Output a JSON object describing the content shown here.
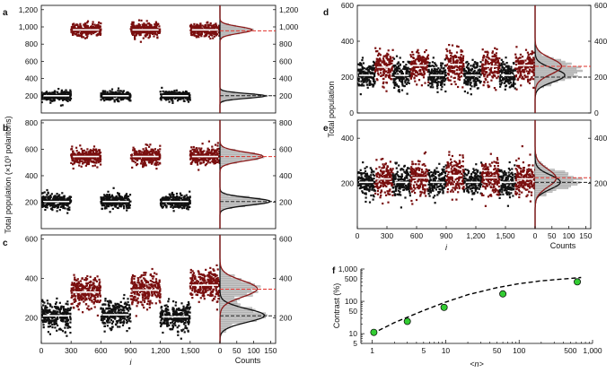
{
  "figure": {
    "panel_letters": [
      "a",
      "b",
      "c",
      "d",
      "e",
      "f"
    ]
  },
  "colors": {
    "series_low": "#111111",
    "series_high": "#7a0f0f",
    "mean_line": "#ffffff",
    "fit_low": "#111111",
    "fit_high": "#8b1a1a",
    "dashed_high": "#e0302a",
    "dashed_low": "#222222",
    "histogram_fill": "#c8c8c8",
    "fit_points": "#33cc33"
  },
  "chart_data": [
    {
      "panel": "a",
      "type": "scatter",
      "xlabel": "",
      "ylabel": "",
      "x_ticks": [],
      "ylim": [
        0,
        1250
      ],
      "y_ticks": [
        200,
        400,
        600,
        800,
        1000,
        1200
      ],
      "y_tick_labels": [
        "200",
        "400",
        "600",
        "800",
        "1,000",
        "1,200"
      ],
      "segments": [
        {
          "x_range": [
            0,
            300
          ],
          "series": "low",
          "mean": 200,
          "spread": 60
        },
        {
          "x_range": [
            300,
            600
          ],
          "series": "high",
          "mean": 965,
          "spread": 80
        },
        {
          "x_range": [
            600,
            900
          ],
          "series": "low",
          "mean": 200,
          "spread": 60
        },
        {
          "x_range": [
            900,
            1200
          ],
          "series": "high",
          "mean": 965,
          "spread": 80
        },
        {
          "x_range": [
            1200,
            1500
          ],
          "series": "low",
          "mean": 200,
          "spread": 60
        },
        {
          "x_range": [
            1500,
            1800
          ],
          "series": "high",
          "mean": 965,
          "spread": 80
        }
      ],
      "histogram": {
        "x_ticks": [],
        "dashed_high": 955,
        "dashed_low": 200
      }
    },
    {
      "panel": "b",
      "type": "scatter",
      "xlabel": "",
      "ylabel": "Total population (×10³ polaritons)",
      "x_ticks": [],
      "ylim": [
        0,
        820
      ],
      "y_ticks": [
        200,
        400,
        600,
        800
      ],
      "y_tick_labels": [
        "200",
        "400",
        "600",
        "800"
      ],
      "segments": [
        {
          "x_range": [
            0,
            300
          ],
          "series": "low",
          "mean": 205,
          "spread": 60
        },
        {
          "x_range": [
            300,
            600
          ],
          "series": "high",
          "mean": 545,
          "spread": 70
        },
        {
          "x_range": [
            600,
            900
          ],
          "series": "low",
          "mean": 205,
          "spread": 60
        },
        {
          "x_range": [
            900,
            1200
          ],
          "series": "high",
          "mean": 545,
          "spread": 70
        },
        {
          "x_range": [
            1200,
            1500
          ],
          "series": "low",
          "mean": 205,
          "spread": 60
        },
        {
          "x_range": [
            1500,
            1800
          ],
          "series": "high",
          "mean": 545,
          "spread": 70
        }
      ],
      "histogram": {
        "x_ticks": [],
        "dashed_high": 545,
        "dashed_low": 205
      }
    },
    {
      "panel": "c",
      "type": "scatter",
      "xlabel": "i",
      "ylabel": "",
      "xlim": [
        0,
        1800
      ],
      "x_ticks": [
        0,
        300,
        600,
        900,
        1200,
        1500
      ],
      "x_tick_labels": [
        "0",
        "300",
        "600",
        "900",
        "1,200",
        "1,500"
      ],
      "ylim": [
        70,
        620
      ],
      "y_ticks": [
        200,
        400,
        600
      ],
      "y_tick_labels": [
        "200",
        "400",
        "600"
      ],
      "segments": [
        {
          "x_range": [
            0,
            300
          ],
          "series": "low",
          "mean": 210,
          "spread": 75
        },
        {
          "x_range": [
            300,
            600
          ],
          "series": "high",
          "mean": 330,
          "spread": 85
        },
        {
          "x_range": [
            600,
            900
          ],
          "series": "low",
          "mean": 215,
          "spread": 75
        },
        {
          "x_range": [
            900,
            1200
          ],
          "series": "high",
          "mean": 340,
          "spread": 85
        },
        {
          "x_range": [
            1200,
            1500
          ],
          "series": "low",
          "mean": 205,
          "spread": 75
        },
        {
          "x_range": [
            1500,
            1800
          ],
          "series": "high",
          "mean": 365,
          "spread": 85
        }
      ],
      "histogram": {
        "xlabel": "Counts",
        "x_ticks": [
          0,
          50,
          100,
          150
        ],
        "x_tick_labels": [
          "0",
          "50",
          "100",
          "150"
        ],
        "dashed_high": 345,
        "dashed_low": 210
      }
    },
    {
      "panel": "d",
      "type": "scatter",
      "xlabel": "",
      "ylabel": "",
      "x_ticks": [],
      "ylim": [
        0,
        600
      ],
      "y_ticks": [
        0,
        200,
        400,
        600
      ],
      "y_tick_labels": [
        "0",
        "200",
        "400",
        "600"
      ],
      "segments": [
        {
          "x_range": [
            0,
            180
          ],
          "series": "low",
          "mean": 210,
          "spread": 80
        },
        {
          "x_range": [
            180,
            360
          ],
          "series": "high",
          "mean": 255,
          "spread": 95
        },
        {
          "x_range": [
            360,
            540
          ],
          "series": "low",
          "mean": 210,
          "spread": 80
        },
        {
          "x_range": [
            540,
            720
          ],
          "series": "high",
          "mean": 265,
          "spread": 95
        },
        {
          "x_range": [
            720,
            900
          ],
          "series": "low",
          "mean": 210,
          "spread": 80
        },
        {
          "x_range": [
            900,
            1080
          ],
          "series": "high",
          "mean": 270,
          "spread": 95
        },
        {
          "x_range": [
            1080,
            1260
          ],
          "series": "low",
          "mean": 210,
          "spread": 80
        },
        {
          "x_range": [
            1260,
            1440
          ],
          "series": "high",
          "mean": 260,
          "spread": 95
        },
        {
          "x_range": [
            1440,
            1600
          ],
          "series": "low",
          "mean": 210,
          "spread": 80
        },
        {
          "x_range": [
            1600,
            1800
          ],
          "series": "high",
          "mean": 265,
          "spread": 95
        }
      ],
      "histogram": {
        "x_ticks": [],
        "dashed_high": 260,
        "dashed_low": 200
      }
    },
    {
      "panel": "e",
      "type": "scatter",
      "xlabel": "i",
      "ylabel": "Total population",
      "xlim": [
        0,
        1800
      ],
      "x_ticks": [
        0,
        300,
        600,
        900,
        1200,
        1500
      ],
      "x_tick_labels": [
        "0",
        "300",
        "600",
        "900",
        "1,200",
        "1,500"
      ],
      "ylim": [
        0,
        480
      ],
      "y_ticks": [
        200,
        400
      ],
      "y_tick_labels": [
        "200",
        "400"
      ],
      "segments": [
        {
          "x_range": [
            0,
            180
          ],
          "series": "low",
          "mean": 205,
          "spread": 70
        },
        {
          "x_range": [
            180,
            360
          ],
          "series": "high",
          "mean": 220,
          "spread": 85
        },
        {
          "x_range": [
            360,
            540
          ],
          "series": "low",
          "mean": 205,
          "spread": 70
        },
        {
          "x_range": [
            540,
            720
          ],
          "series": "high",
          "mean": 225,
          "spread": 85
        },
        {
          "x_range": [
            720,
            900
          ],
          "series": "low",
          "mean": 205,
          "spread": 70
        },
        {
          "x_range": [
            900,
            1080
          ],
          "series": "high",
          "mean": 235,
          "spread": 85
        },
        {
          "x_range": [
            1080,
            1260
          ],
          "series": "low",
          "mean": 205,
          "spread": 70
        },
        {
          "x_range": [
            1260,
            1440
          ],
          "series": "high",
          "mean": 225,
          "spread": 85
        },
        {
          "x_range": [
            1440,
            1600
          ],
          "series": "low",
          "mean": 205,
          "spread": 70
        },
        {
          "x_range": [
            1600,
            1800
          ],
          "series": "high",
          "mean": 220,
          "spread": 85
        }
      ],
      "histogram": {
        "xlabel": "Counts",
        "x_ticks": [
          0,
          50,
          100,
          150
        ],
        "x_tick_labels": [
          "0",
          "50",
          "100",
          "150"
        ],
        "dashed_high": 225,
        "dashed_low": 205
      }
    },
    {
      "panel": "f",
      "type": "scatter",
      "xlabel": "<n>",
      "ylabel": "Contrast (%)",
      "xscale": "log",
      "yscale": "log",
      "xlim": [
        0.7,
        1000
      ],
      "x_ticks": [
        1,
        10,
        100,
        1000
      ],
      "x_tick_labels": [
        "1",
        "10",
        "100",
        "1,000"
      ],
      "x_minor_labels": {
        "5": "5",
        "50": "50",
        "500": "500"
      },
      "ylim": [
        5,
        1000
      ],
      "y_ticks": [
        10,
        100,
        1000
      ],
      "y_tick_labels": [
        "10",
        "100",
        "1,000"
      ],
      "y_minor_labels": {
        "5": "5",
        "50": "50",
        "500": "500"
      },
      "points": [
        {
          "x": 1.05,
          "y": 11
        },
        {
          "x": 3,
          "y": 24
        },
        {
          "x": 9.5,
          "y": 65
        },
        {
          "x": 60,
          "y": 170
        },
        {
          "x": 620,
          "y": 400
        }
      ],
      "fit_curve": {
        "style": "dashed",
        "x": [
          1,
          2,
          5,
          10,
          20,
          50,
          100,
          200,
          500,
          700
        ],
        "y": [
          10,
          22,
          52,
          95,
          160,
          265,
          350,
          430,
          510,
          545
        ]
      }
    }
  ]
}
